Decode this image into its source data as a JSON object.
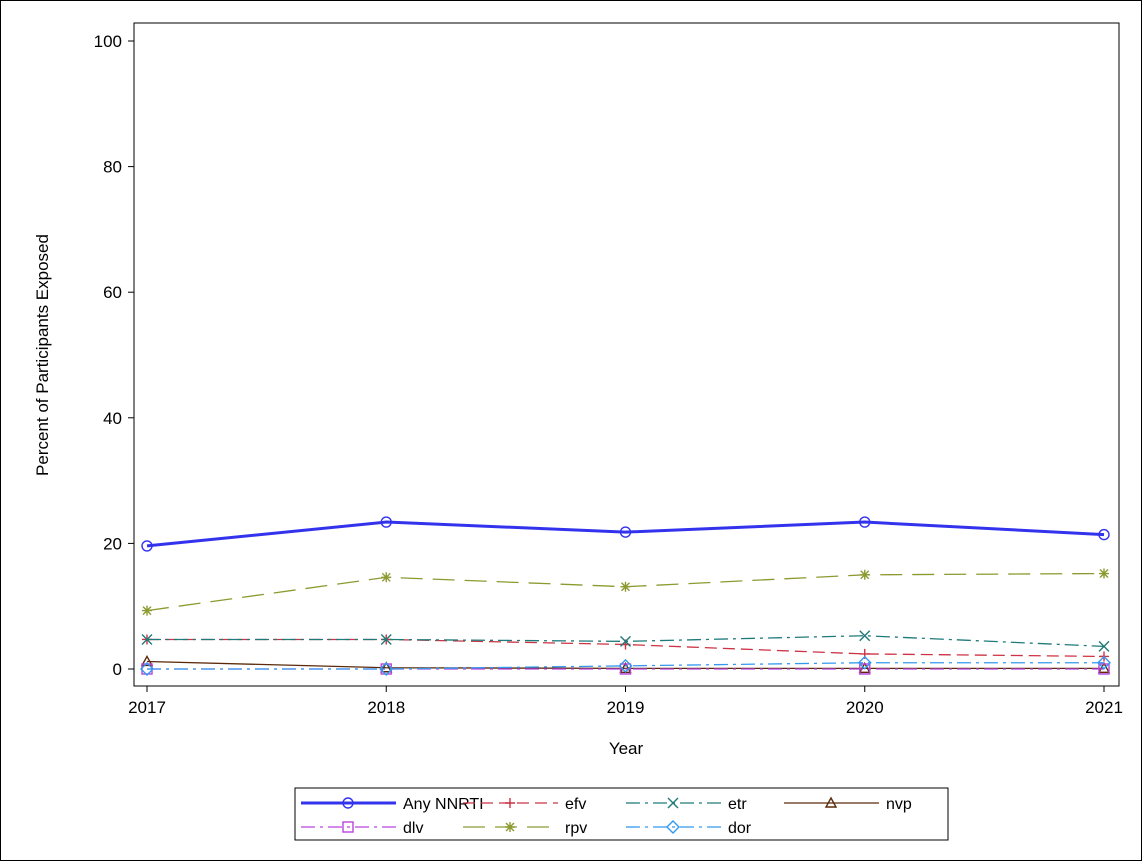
{
  "chart_data": {
    "type": "line",
    "title": "",
    "xlabel": "Year",
    "ylabel": "Percent of Participants Exposed",
    "x": [
      2017,
      2018,
      2019,
      2020,
      2021
    ],
    "x_tick_labels": [
      "2017",
      "2018",
      "2019",
      "2020",
      "2021"
    ],
    "xlim": [
      2017,
      2021
    ],
    "ylim": [
      0,
      100
    ],
    "y_ticks": [
      0,
      20,
      40,
      60,
      80,
      100
    ],
    "y_tick_labels": [
      "0",
      "20",
      "40",
      "60",
      "80",
      "100"
    ],
    "grid": false,
    "legend_position": "bottom-center",
    "series": [
      {
        "name": "Any NNRTI",
        "values": [
          19.6,
          23.4,
          21.8,
          23.4,
          21.4
        ],
        "color": "#3333ee",
        "marker": "circle",
        "dash": "solid"
      },
      {
        "name": "efv",
        "values": [
          4.7,
          4.7,
          3.9,
          2.4,
          2.0
        ],
        "color": "#cc3344",
        "marker": "plus",
        "dash": "dash"
      },
      {
        "name": "etr",
        "values": [
          4.7,
          4.7,
          4.4,
          5.3,
          3.6
        ],
        "color": "#1f7a7a",
        "marker": "x",
        "dash": "dashdot"
      },
      {
        "name": "nvp",
        "values": [
          1.2,
          0.2,
          0.1,
          0.1,
          0.1
        ],
        "color": "#5a2a0a",
        "marker": "triangle",
        "dash": "solid"
      },
      {
        "name": "dlv",
        "values": [
          0.0,
          0.0,
          0.0,
          0.0,
          0.0
        ],
        "color": "#bb44dd",
        "marker": "square",
        "dash": "dashdot"
      },
      {
        "name": "rpv",
        "values": [
          9.3,
          14.6,
          13.1,
          15.0,
          15.2
        ],
        "color": "#8c9a30",
        "marker": "star",
        "dash": "longdash"
      },
      {
        "name": "dor",
        "values": [
          0.0,
          0.0,
          0.5,
          1.0,
          1.0
        ],
        "color": "#3399ee",
        "marker": "diamond",
        "dash": "dashdot"
      }
    ]
  }
}
